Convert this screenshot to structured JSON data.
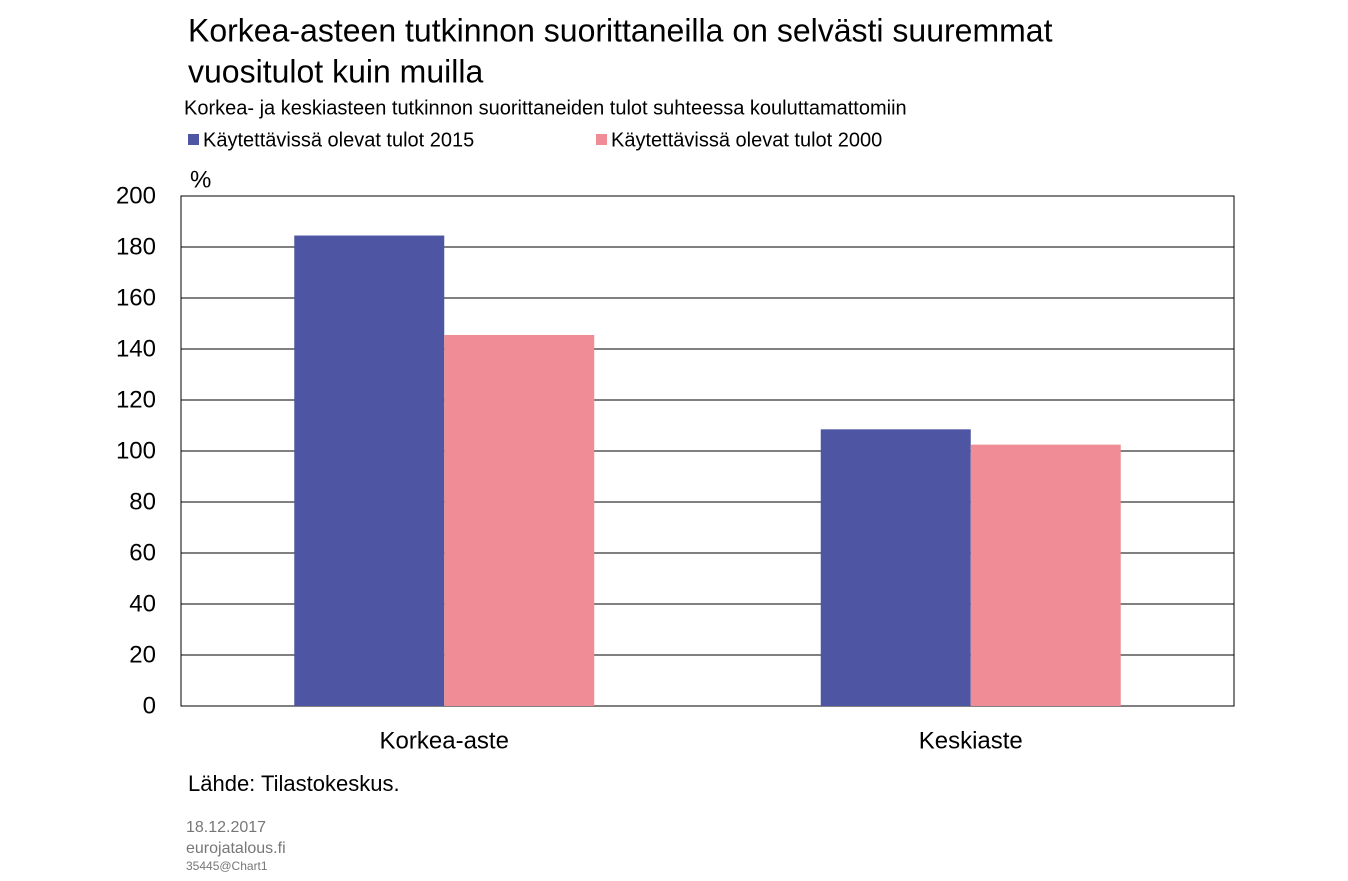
{
  "chart_data": {
    "type": "bar",
    "title": [
      "Korkea-asteen tutkinnon suorittaneilla on selvästi suuremmat",
      "vuositulot kuin muilla"
    ],
    "subtitle": "Korkea- ja keskiasteen tutkinnon suorittaneiden tulot suhteessa kouluttamattomiin",
    "y_label": "%",
    "categories": [
      "Korkea-aste",
      "Keskiaste"
    ],
    "series": [
      {
        "name": "Käytettävissä olevat tulot 2015",
        "color": "#4e56a4",
        "values": [
          184.5,
          108.5
        ]
      },
      {
        "name": "Käytettävissä olevat tulot 2000",
        "color": "#f08c95",
        "values": [
          145.5,
          102.5
        ]
      }
    ],
    "ylim": [
      0,
      200
    ],
    "yticks": [
      0,
      20,
      40,
      60,
      80,
      100,
      120,
      140,
      160,
      180,
      200
    ],
    "grid": true,
    "source": "Lähde: Tilastokeskus.",
    "footer": [
      "18.12.2017",
      "eurojatalous.fi",
      "35445@Chart1"
    ]
  }
}
